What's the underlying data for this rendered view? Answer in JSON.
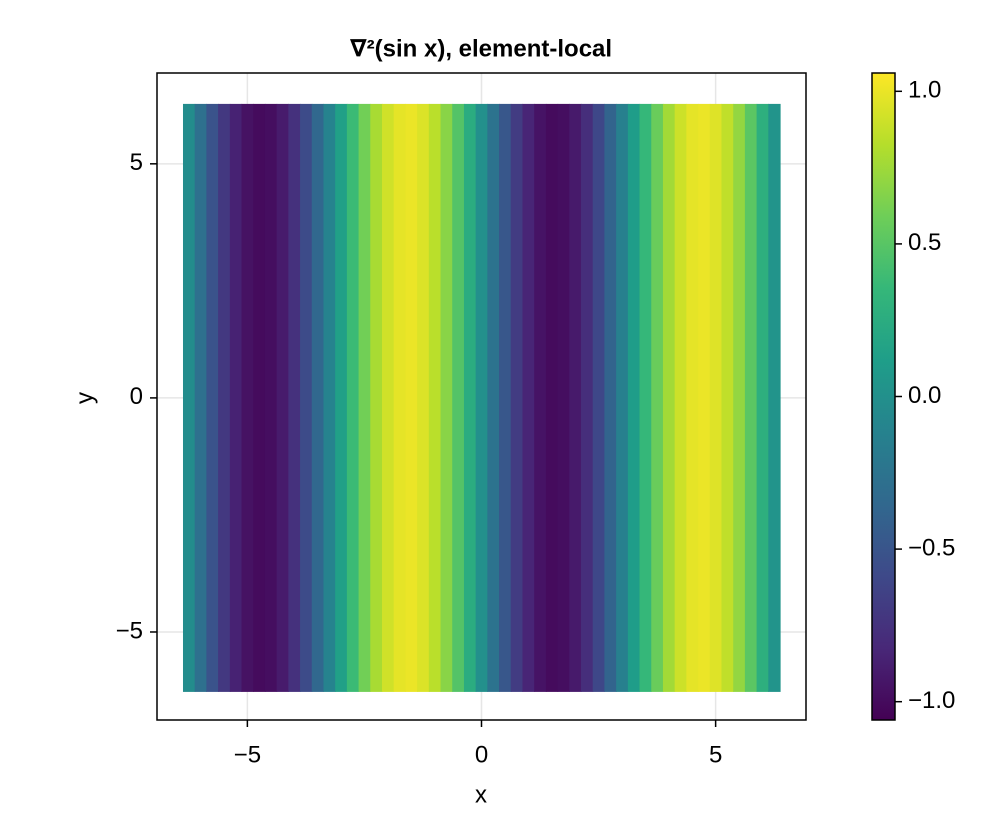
{
  "chart_data": {
    "type": "heatmap",
    "title": "∇²(sin x), element-local",
    "x_label": "x",
    "y_label": "y",
    "x": [
      -6.25,
      -6.0,
      -5.75,
      -5.5,
      -5.25,
      -5.0,
      -4.75,
      -4.5,
      -4.25,
      -4.0,
      -3.75,
      -3.5,
      -3.25,
      -3.0,
      -2.75,
      -2.5,
      -2.25,
      -2.0,
      -1.75,
      -1.5,
      -1.25,
      -1.0,
      -0.75,
      -0.5,
      -0.25,
      0,
      0.25,
      0.5,
      0.75,
      1.0,
      1.25,
      1.5,
      1.75,
      2.0,
      2.25,
      2.5,
      2.75,
      3.0,
      3.25,
      3.5,
      3.75,
      4.0,
      4.25,
      4.5,
      4.75,
      5.0,
      5.25,
      5.5,
      5.75,
      6.0,
      6.25
    ],
    "y": [
      -6.28,
      6.28
    ],
    "values": [
      -0.03,
      -0.28,
      -0.51,
      -0.71,
      -0.86,
      -0.96,
      -1.0,
      -0.98,
      -0.9,
      -0.76,
      -0.57,
      -0.35,
      -0.11,
      0.14,
      0.38,
      0.6,
      0.78,
      0.91,
      0.98,
      1.0,
      0.95,
      0.84,
      0.68,
      0.48,
      0.25,
      0,
      -0.25,
      -0.48,
      -0.68,
      -0.84,
      -0.95,
      -1.0,
      -0.98,
      -0.91,
      -0.78,
      -0.6,
      -0.38,
      -0.14,
      0.11,
      0.35,
      0.57,
      0.76,
      0.9,
      0.98,
      1.0,
      0.96,
      0.86,
      0.71,
      0.51,
      0.28,
      0.03
    ],
    "colormap": "viridis",
    "xlim": [
      -6.93,
      6.93
    ],
    "ylim": [
      -6.88,
      6.94
    ],
    "xticks": [
      {
        "value": -5,
        "label": "−5"
      },
      0,
      5
    ],
    "yticks": [
      {
        "value": -5,
        "label": "−5"
      },
      0,
      5
    ],
    "clim": [
      -1.06,
      1.06
    ],
    "cticks": [
      {
        "value": -1,
        "label": "−1.0"
      },
      {
        "value": -0.5,
        "label": "−0.5"
      },
      {
        "value": 0,
        "label": "0.0"
      },
      0.5,
      {
        "value": 1,
        "label": "1.0"
      }
    ],
    "grid": true
  }
}
